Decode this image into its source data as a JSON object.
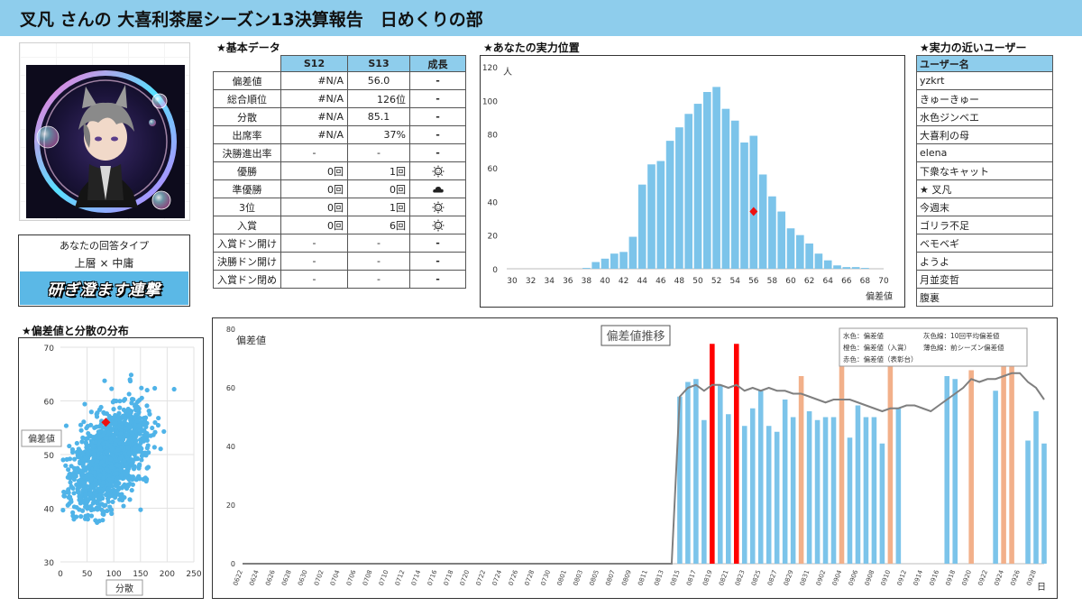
{
  "header": {
    "title": "叉凡 さんの 大喜利茶屋シーズン13決算報告　日めくりの部"
  },
  "sections": {
    "basic": "★基本データ",
    "position": "★あなたの実力位置",
    "users": "★実力の近いユーザー",
    "scatter": "★偏差値と分散の分布"
  },
  "answer_type": {
    "heading": "あなたの回答タイプ",
    "type": "上層 × 中庸",
    "banner": "研ぎ澄ます連撃"
  },
  "basic_table": {
    "headers": [
      "S12",
      "S13",
      "成長"
    ],
    "rows": [
      {
        "label": "偏差値",
        "s12": "#N/A",
        "s13": "56.0",
        "growth": "-"
      },
      {
        "label": "総合順位",
        "s12": "#N/A",
        "s13": "126位",
        "growth": "-"
      },
      {
        "label": "分散",
        "s12": "#N/A",
        "s13": "85.1",
        "growth": "-"
      },
      {
        "label": "出席率",
        "s12": "#N/A",
        "s13": "37%",
        "growth": "-"
      },
      {
        "label": "決勝進出率",
        "s12": "-",
        "s13": "-",
        "growth": "-"
      },
      {
        "label": "優勝",
        "s12": "0回",
        "s13": "1回",
        "growth": "sun"
      },
      {
        "label": "準優勝",
        "s12": "0回",
        "s13": "0回",
        "growth": "cloud"
      },
      {
        "label": "3位",
        "s12": "0回",
        "s13": "1回",
        "growth": "sun"
      },
      {
        "label": "入賞",
        "s12": "0回",
        "s13": "6回",
        "growth": "sun"
      },
      {
        "label": "入賞ドン開け",
        "s12": "-",
        "s13": "-",
        "growth": "-"
      },
      {
        "label": "決勝ドン開け",
        "s12": "-",
        "s13": "-",
        "growth": "-"
      },
      {
        "label": "入賞ドン閉め",
        "s12": "-",
        "s13": "-",
        "growth": "-"
      }
    ]
  },
  "users": {
    "header": "ユーザー名",
    "list": [
      "yzkrt",
      "きゅーきゅー",
      "水色ジンベエ",
      "大喜利の母",
      "elena",
      "下衆なキャット",
      "★ 叉凡",
      "今週末",
      "ゴリラ不足",
      "ベモベギ",
      "ようよ",
      "月並変哲",
      "腹裏"
    ]
  },
  "colors": {
    "header_bg": "#8ecdec",
    "bar_blue": "#7cc4ea",
    "bar_red": "#ff0000",
    "bar_orange": "#f2b08a",
    "line_gray": "#7f7f7f",
    "scatter_blue": "#4fb3e8",
    "marker_red": "#ee1111"
  },
  "chart_data": [
    {
      "type": "bar",
      "title": "",
      "xlabel": "偏差値",
      "ylabel": "人",
      "xlim": [
        30,
        70
      ],
      "ylim": [
        0,
        120
      ],
      "x_ticks": [
        30,
        32,
        34,
        36,
        38,
        40,
        42,
        44,
        46,
        48,
        50,
        52,
        54,
        56,
        58,
        60,
        62,
        64,
        66,
        68,
        70
      ],
      "y_ticks": [
        0,
        20,
        40,
        60,
        80,
        100,
        120
      ],
      "categories": [
        30,
        31,
        32,
        33,
        34,
        35,
        36,
        37,
        38,
        39,
        40,
        41,
        42,
        43,
        44,
        45,
        46,
        47,
        48,
        49,
        50,
        51,
        52,
        53,
        54,
        55,
        56,
        57,
        58,
        59,
        60,
        61,
        62,
        63,
        64,
        65,
        66,
        67,
        68,
        69,
        70
      ],
      "values": [
        0,
        0,
        0,
        0,
        0,
        0,
        0,
        0,
        0.5,
        4,
        6,
        9,
        10,
        19,
        50,
        62,
        64,
        76,
        84,
        92,
        98,
        105,
        108,
        95,
        88,
        75,
        79,
        56,
        43,
        34,
        24,
        20,
        15,
        9,
        5,
        2,
        1,
        1,
        0.5,
        0,
        0
      ],
      "user_marker": {
        "x": 56,
        "y": 34
      }
    },
    {
      "type": "scatter",
      "xlabel": "分散",
      "ylabel": "偏差値",
      "xlim": [
        0,
        250
      ],
      "ylim": [
        30,
        70
      ],
      "x_ticks": [
        0,
        50,
        100,
        150,
        200,
        250
      ],
      "y_ticks": [
        30,
        40,
        50,
        60,
        70
      ],
      "distribution": {
        "n": 1400,
        "x_center": 90,
        "y_center": 50,
        "x_spread": 35,
        "y_spread": 5
      },
      "user_marker": {
        "x": 85.1,
        "y": 56.0
      }
    },
    {
      "type": "bar",
      "title": "偏差値推移",
      "ylabel": "偏差値",
      "xlabel": "日",
      "ylim": [
        0,
        80
      ],
      "y_ticks": [
        0,
        20,
        40,
        60,
        80
      ],
      "categories": [
        "0622",
        "0623",
        "0624",
        "0625",
        "0626",
        "0627",
        "0628",
        "0629",
        "0630",
        "0701",
        "0702",
        "0703",
        "0704",
        "0705",
        "0706",
        "0707",
        "0708",
        "0709",
        "0710",
        "0711",
        "0712",
        "0713",
        "0714",
        "0715",
        "0716",
        "0717",
        "0718",
        "0719",
        "0720",
        "0721",
        "0722",
        "0723",
        "0724",
        "0725",
        "0726",
        "0727",
        "0728",
        "0729",
        "0730",
        "0731",
        "0801",
        "0802",
        "0803",
        "0804",
        "0805",
        "0806",
        "0807",
        "0808",
        "0809",
        "0810",
        "0811",
        "0812",
        "0813",
        "0814",
        "0815",
        "0816",
        "0817",
        "0818",
        "0819",
        "0820",
        "0821",
        "0822",
        "0823",
        "0824",
        "0825",
        "0826",
        "0827",
        "0828",
        "0829",
        "0830",
        "0831",
        "0901",
        "0902",
        "0903",
        "0904",
        "0905",
        "0906",
        "0907",
        "0908",
        "0909",
        "0910",
        "0911",
        "0912",
        "0913",
        "0914",
        "0915",
        "0916",
        "0917",
        "0918",
        "0919",
        "0920",
        "0921",
        "0922",
        "0923",
        "0924",
        "0925",
        "0926",
        "0927",
        "0928",
        "0929"
      ],
      "x_tick_labels": [
        "0622",
        "0624",
        "0626",
        "0628",
        "0630",
        "0702",
        "0704",
        "0706",
        "0708",
        "0710",
        "0712",
        "0714",
        "0716",
        "0718",
        "0720",
        "0722",
        "0724",
        "0726",
        "0728",
        "0730",
        "0801",
        "0803",
        "0805",
        "0807",
        "0809",
        "0811",
        "0813",
        "0815",
        "0817",
        "0819",
        "0821",
        "0823",
        "0825",
        "0827",
        "0829",
        "0831",
        "0902",
        "0904",
        "0906",
        "0908",
        "0910",
        "0912",
        "0914",
        "0916",
        "0918",
        "0920",
        "0922",
        "0924",
        "0926",
        "0928"
      ],
      "series": [
        {
          "name": "水色：偏差値",
          "color": "blue",
          "values": {
            "0815": 57,
            "0816": 62,
            "0817": 63,
            "0818": 49,
            "0820": 61,
            "0822": 51,
            "0824": 47,
            "0825": 50,
            "0826": 59,
            "0827": 47,
            "0828": 45,
            "0829": 56,
            "0830": 50,
            "0832": 52,
            "0833": 49,
            "0834": 50,
            "0835": 50,
            "0837": 43,
            "0838": 54,
            "0839": 50,
            "0840": 50,
            "0841": 41
          }
        },
        {
          "name": "橙色：偏差値（入賞）",
          "color": "orange",
          "values": {
            "0831": 64,
            "0905": 68,
            "0911": 70,
            "0921": 66,
            "0925": 68,
            "0926": 69
          }
        },
        {
          "name": "赤色：偏差値（表彰台）",
          "color": "red",
          "values": {
            "0819": 75,
            "0821": 75
          }
        },
        {
          "name": "灰色線：10回平均偏差値",
          "color": "gray"
        },
        {
          "name": "薄色線：前シーズン偏差値",
          "color": "lightgray"
        }
      ],
      "bars": [
        {
          "d": "0815",
          "v": 57,
          "c": "blue"
        },
        {
          "d": "0816",
          "v": 62,
          "c": "blue"
        },
        {
          "d": "0817",
          "v": 63,
          "c": "blue"
        },
        {
          "d": "0818",
          "v": 49,
          "c": "blue"
        },
        {
          "d": "0819",
          "v": 75,
          "c": "red"
        },
        {
          "d": "0820",
          "v": 61,
          "c": "blue"
        },
        {
          "d": "0821",
          "v": 51,
          "c": "blue"
        },
        {
          "d": "0822",
          "v": 75,
          "c": "red"
        },
        {
          "d": "0823",
          "v": 47,
          "c": "blue"
        },
        {
          "d": "0824",
          "v": 53,
          "c": "blue"
        },
        {
          "d": "0825",
          "v": 59,
          "c": "blue"
        },
        {
          "d": "0826",
          "v": 47,
          "c": "blue"
        },
        {
          "d": "0827",
          "v": 45,
          "c": "blue"
        },
        {
          "d": "0828",
          "v": 56,
          "c": "blue"
        },
        {
          "d": "0829",
          "v": 50,
          "c": "blue"
        },
        {
          "d": "0830",
          "v": 64,
          "c": "orange"
        },
        {
          "d": "0831",
          "v": 52,
          "c": "blue"
        },
        {
          "d": "0901",
          "v": 49,
          "c": "blue"
        },
        {
          "d": "0902",
          "v": 50,
          "c": "blue"
        },
        {
          "d": "0903",
          "v": 50,
          "c": "blue"
        },
        {
          "d": "0904",
          "v": 68,
          "c": "orange"
        },
        {
          "d": "0905",
          "v": 43,
          "c": "blue"
        },
        {
          "d": "0906",
          "v": 54,
          "c": "blue"
        },
        {
          "d": "0907",
          "v": 50,
          "c": "blue"
        },
        {
          "d": "0908",
          "v": 50,
          "c": "blue"
        },
        {
          "d": "0909",
          "v": 41,
          "c": "blue"
        },
        {
          "d": "0910",
          "v": 70,
          "c": "orange"
        },
        {
          "d": "0911",
          "v": 53,
          "c": "blue"
        },
        {
          "d": "0917",
          "v": 64,
          "c": "blue"
        },
        {
          "d": "0918",
          "v": 63,
          "c": "blue"
        },
        {
          "d": "0920",
          "v": 66,
          "c": "orange"
        },
        {
          "d": "0923",
          "v": 59,
          "c": "blue"
        },
        {
          "d": "0924",
          "v": 68,
          "c": "orange"
        },
        {
          "d": "0925",
          "v": 69,
          "c": "orange"
        },
        {
          "d": "0927",
          "v": 42,
          "c": "blue"
        },
        {
          "d": "0928",
          "v": 52,
          "c": "blue"
        },
        {
          "d": "0929",
          "v": 41,
          "c": "blue"
        }
      ],
      "avg_line": [
        {
          "d": "0622",
          "v": 0
        },
        {
          "d": "0814",
          "v": 0
        },
        {
          "d": "0815",
          "v": 57
        },
        {
          "d": "0816",
          "v": 60
        },
        {
          "d": "0817",
          "v": 61
        },
        {
          "d": "0818",
          "v": 59
        },
        {
          "d": "0819",
          "v": 61
        },
        {
          "d": "0820",
          "v": 61
        },
        {
          "d": "0821",
          "v": 60
        },
        {
          "d": "0822",
          "v": 61
        },
        {
          "d": "0823",
          "v": 59
        },
        {
          "d": "0824",
          "v": 60
        },
        {
          "d": "0825",
          "v": 59
        },
        {
          "d": "0826",
          "v": 60
        },
        {
          "d": "0827",
          "v": 59
        },
        {
          "d": "0828",
          "v": 59
        },
        {
          "d": "0829",
          "v": 58
        },
        {
          "d": "0830",
          "v": 58
        },
        {
          "d": "0831",
          "v": 57
        },
        {
          "d": "0901",
          "v": 56
        },
        {
          "d": "0902",
          "v": 55
        },
        {
          "d": "0903",
          "v": 56
        },
        {
          "d": "0904",
          "v": 56
        },
        {
          "d": "0905",
          "v": 56
        },
        {
          "d": "0906",
          "v": 55
        },
        {
          "d": "0907",
          "v": 54
        },
        {
          "d": "0908",
          "v": 53
        },
        {
          "d": "0909",
          "v": 52
        },
        {
          "d": "0910",
          "v": 53
        },
        {
          "d": "0911",
          "v": 53
        },
        {
          "d": "0912",
          "v": 54
        },
        {
          "d": "0913",
          "v": 54
        },
        {
          "d": "0914",
          "v": 53
        },
        {
          "d": "0915",
          "v": 52
        },
        {
          "d": "0916",
          "v": 54
        },
        {
          "d": "0917",
          "v": 56
        },
        {
          "d": "0918",
          "v": 58
        },
        {
          "d": "0919",
          "v": 60
        },
        {
          "d": "0920",
          "v": 63
        },
        {
          "d": "0921",
          "v": 62
        },
        {
          "d": "0922",
          "v": 63
        },
        {
          "d": "0923",
          "v": 63
        },
        {
          "d": "0924",
          "v": 64
        },
        {
          "d": "0925",
          "v": 65
        },
        {
          "d": "0926",
          "v": 65
        },
        {
          "d": "0927",
          "v": 62
        },
        {
          "d": "0928",
          "v": 60
        },
        {
          "d": "0929",
          "v": 56
        }
      ],
      "legend": [
        "水色：偏差値",
        "灰色線：10回平均偏差値",
        "橙色：偏差値（入賞）",
        "薄色線：前シーズン偏差値",
        "赤色：偏差値（表彰台）"
      ]
    }
  ]
}
